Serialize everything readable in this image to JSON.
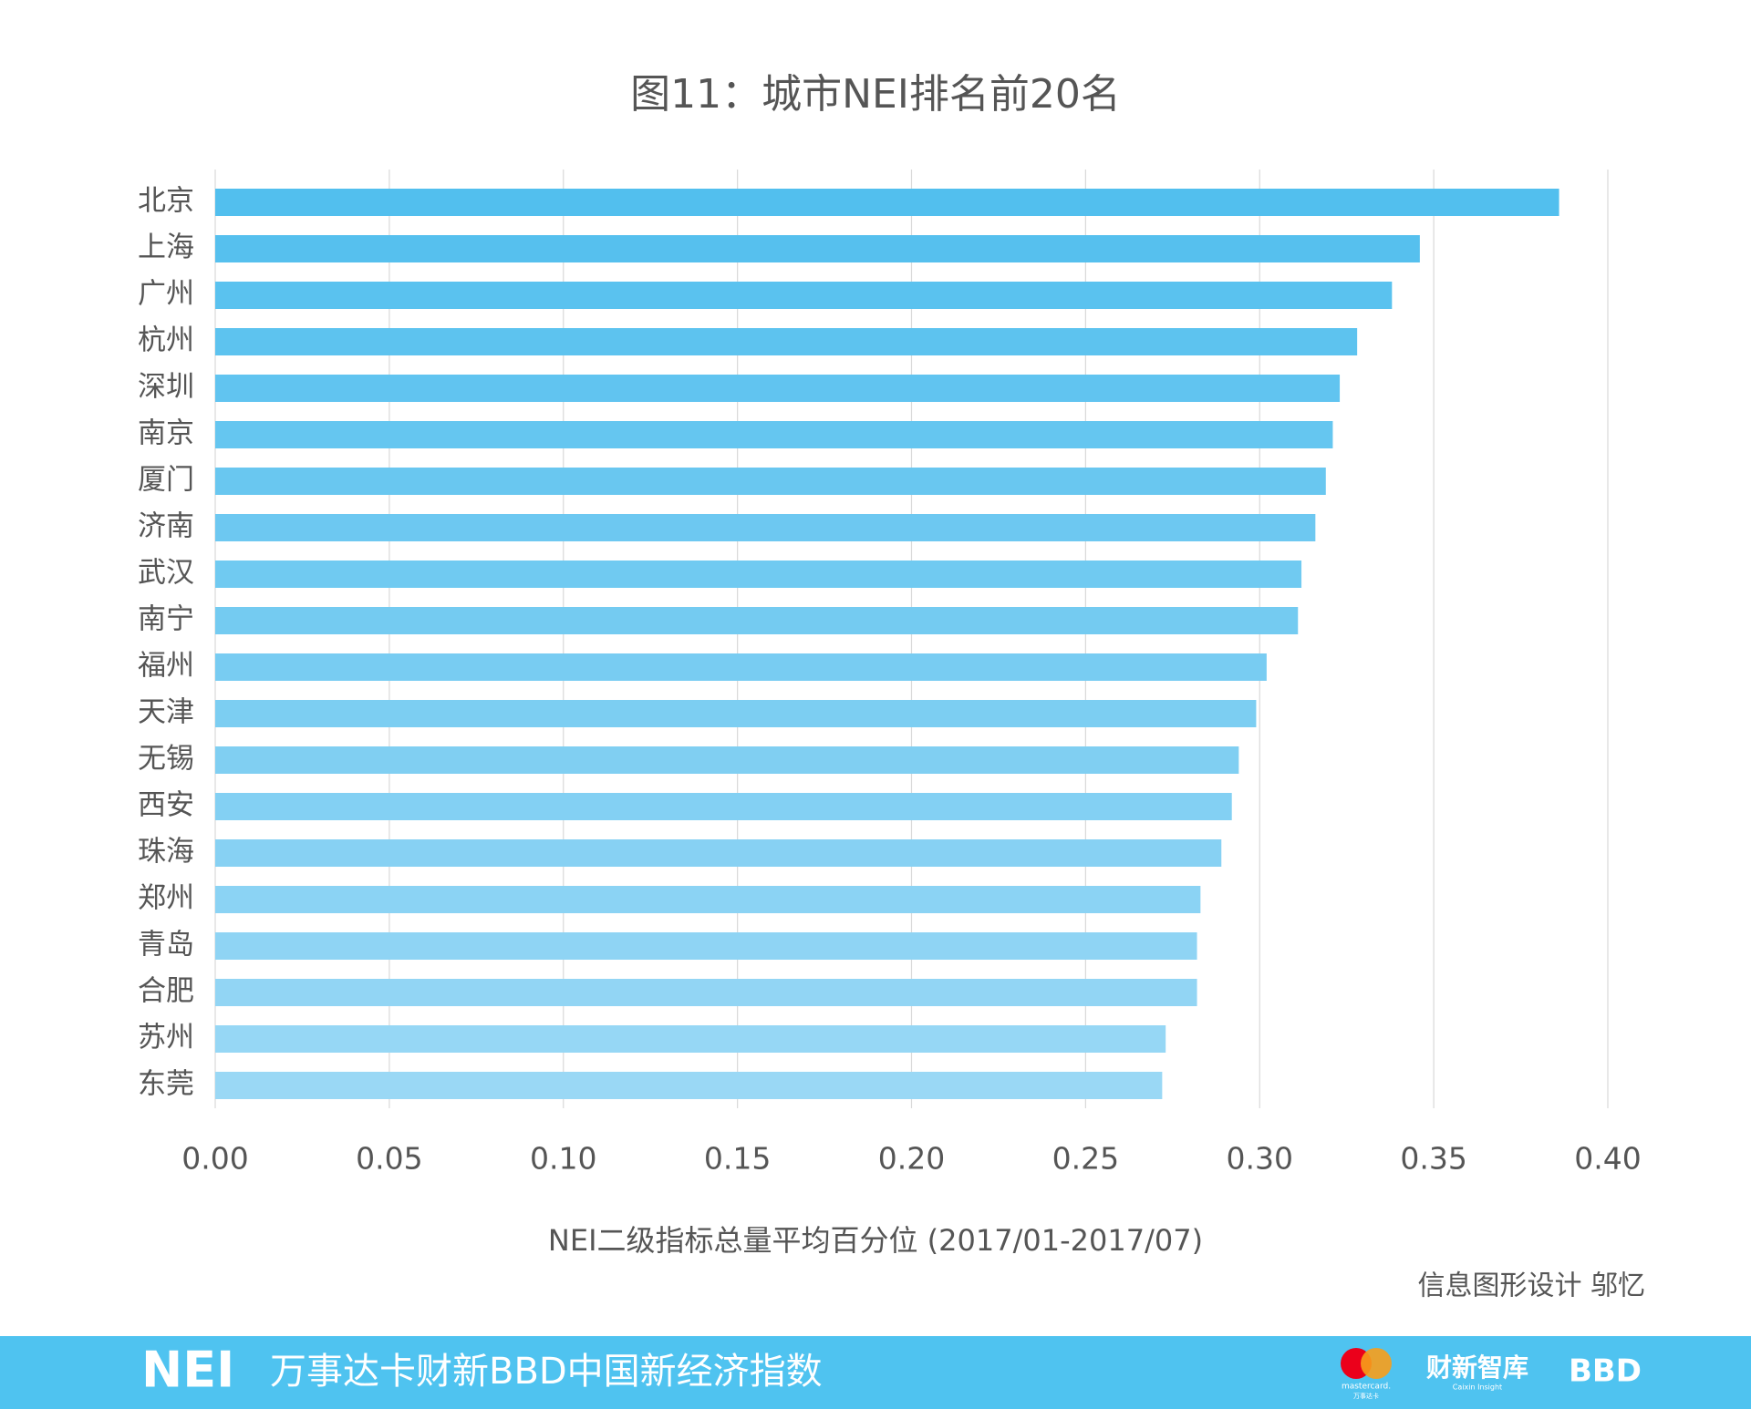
{
  "chart_data": {
    "type": "barh",
    "title": "图11：城市NEI排名前20名",
    "x_label": "NEI二级指标总量平均百分位 (2017/01-2017/07)",
    "categories": [
      "北京",
      "上海",
      "广州",
      "杭州",
      "深圳",
      "南京",
      "厦门",
      "济南",
      "武汉",
      "南宁",
      "福州",
      "天津",
      "无锡",
      "西安",
      "珠海",
      "郑州",
      "青岛",
      "合肥",
      "苏州",
      "东莞"
    ],
    "values": [
      0.386,
      0.346,
      0.338,
      0.328,
      0.323,
      0.321,
      0.319,
      0.316,
      0.312,
      0.311,
      0.302,
      0.299,
      0.294,
      0.292,
      0.289,
      0.283,
      0.282,
      0.282,
      0.273,
      0.272
    ],
    "colors": [
      "#52bfee",
      "#56c0ee",
      "#5ac2ef",
      "#5dc3ef",
      "#61c4f0",
      "#65c6f0",
      "#69c7f0",
      "#6dc8f1",
      "#70caf1",
      "#74cbf1",
      "#78ccf2",
      "#7ccef2",
      "#80cff2",
      "#83d0f3",
      "#87d1f3",
      "#8bd3f4",
      "#8fd4f4",
      "#92d5f4",
      "#96d7f5",
      "#9ad8f5"
    ],
    "xlim": [
      0,
      0.4
    ],
    "xticks": [
      {
        "value": 0,
        "label": "0.00"
      },
      {
        "value": 0.05,
        "label": "0.05"
      },
      {
        "value": 0.1,
        "label": "0.10"
      },
      {
        "value": 0.15,
        "label": "0.15"
      },
      {
        "value": 0.2,
        "label": "0.20"
      },
      {
        "value": 0.25,
        "label": "0.25"
      },
      {
        "value": 0.3,
        "label": "0.30"
      },
      {
        "value": 0.35,
        "label": "0.35"
      },
      {
        "value": 0.4,
        "label": "0.40"
      }
    ],
    "grid": true
  },
  "credit": "信息图形设计 邬忆",
  "footer": {
    "logo": "NEI",
    "text": "万事达卡财新BBD中国新经济指数",
    "mastercard": "mastercard.",
    "mastercard_cn": "万事达卡",
    "caixin": "财新智库",
    "caixin_en": "Caixin Insight",
    "bbd": "BBD"
  }
}
